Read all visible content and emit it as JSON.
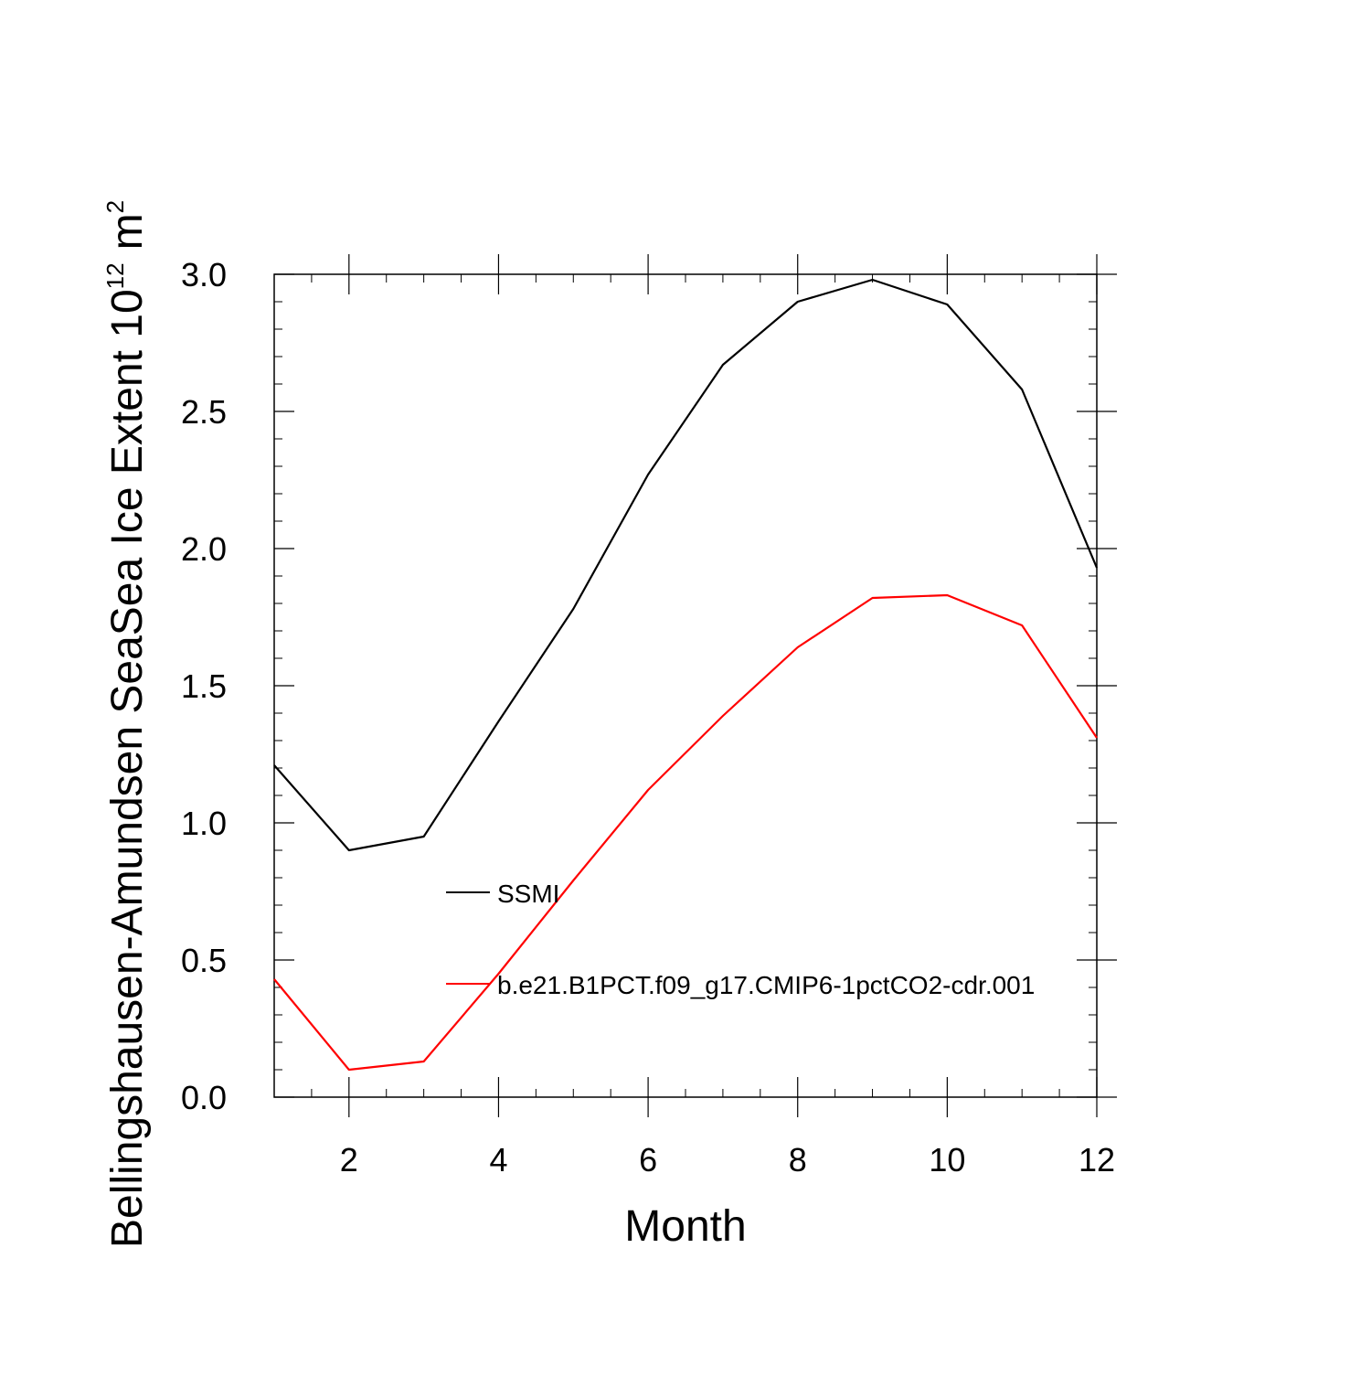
{
  "chart_data": {
    "type": "line",
    "title": "",
    "xlabel": "Month",
    "ylabel": {
      "main": "Bellingshausen-Amundsen SeaSea Ice Extent 10",
      "exponent": "12",
      "unit": "m",
      "unit_exponent": "2"
    },
    "xlim": [
      1,
      12
    ],
    "ylim": [
      0,
      3
    ],
    "x_ticks": [
      2,
      4,
      6,
      8,
      10,
      12
    ],
    "x_tick_labels": [
      "2",
      "4",
      "6",
      "8",
      "10",
      "12"
    ],
    "y_ticks": [
      0,
      0.5,
      1.0,
      1.5,
      2.0,
      2.5,
      3.0
    ],
    "y_tick_labels": [
      "0.0",
      "0.5",
      "1.0",
      "1.5",
      "2.0",
      "2.5",
      "3.0"
    ],
    "x": [
      1,
      2,
      3,
      4,
      5,
      6,
      7,
      8,
      9,
      10,
      11,
      12
    ],
    "series": [
      {
        "name": "SSMI",
        "color": "#000000",
        "values": [
          1.21,
          0.9,
          0.95,
          1.37,
          1.78,
          2.27,
          2.67,
          2.9,
          2.98,
          2.89,
          2.58,
          1.93
        ]
      },
      {
        "name": "b.e21.B1PCT.f09_g17.CMIP6-1pctCO2-cdr.001",
        "color": "#ff0000",
        "values": [
          0.43,
          0.1,
          0.13,
          0.45,
          0.79,
          1.12,
          1.39,
          1.64,
          1.82,
          1.83,
          1.72,
          1.31
        ]
      }
    ],
    "legend_location": "center"
  }
}
